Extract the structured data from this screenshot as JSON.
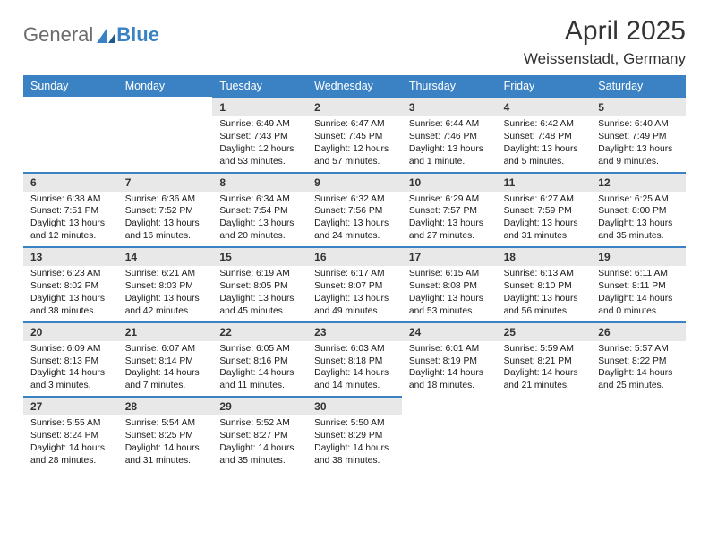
{
  "brand": {
    "name_part1": "General",
    "name_part2": "Blue",
    "text_color": "#6b6b6b",
    "accent_color": "#3b82c4"
  },
  "header": {
    "title": "April 2025",
    "location": "Weissenstadt, Germany",
    "title_fontsize": 30,
    "title_color": "#333333"
  },
  "style": {
    "header_bg": "#3b82c4",
    "header_text": "#ffffff",
    "daynum_bg": "#e8e8e8",
    "cell_border_color": "#3b82c4",
    "body_bg": "#ffffff",
    "text_color": "#1a1a1a",
    "detail_fontsize": 10.3,
    "daynum_fontsize": 12,
    "columns": 7
  },
  "day_names": [
    "Sunday",
    "Monday",
    "Tuesday",
    "Wednesday",
    "Thursday",
    "Friday",
    "Saturday"
  ],
  "weeks": [
    {
      "cells": [
        {
          "empty": true
        },
        {
          "empty": true
        },
        {
          "day": "1",
          "sunrise": "Sunrise: 6:49 AM",
          "sunset": "Sunset: 7:43 PM",
          "daylight": "Daylight: 12 hours and 53 minutes."
        },
        {
          "day": "2",
          "sunrise": "Sunrise: 6:47 AM",
          "sunset": "Sunset: 7:45 PM",
          "daylight": "Daylight: 12 hours and 57 minutes."
        },
        {
          "day": "3",
          "sunrise": "Sunrise: 6:44 AM",
          "sunset": "Sunset: 7:46 PM",
          "daylight": "Daylight: 13 hours and 1 minute."
        },
        {
          "day": "4",
          "sunrise": "Sunrise: 6:42 AM",
          "sunset": "Sunset: 7:48 PM",
          "daylight": "Daylight: 13 hours and 5 minutes."
        },
        {
          "day": "5",
          "sunrise": "Sunrise: 6:40 AM",
          "sunset": "Sunset: 7:49 PM",
          "daylight": "Daylight: 13 hours and 9 minutes."
        }
      ]
    },
    {
      "cells": [
        {
          "day": "6",
          "sunrise": "Sunrise: 6:38 AM",
          "sunset": "Sunset: 7:51 PM",
          "daylight": "Daylight: 13 hours and 12 minutes."
        },
        {
          "day": "7",
          "sunrise": "Sunrise: 6:36 AM",
          "sunset": "Sunset: 7:52 PM",
          "daylight": "Daylight: 13 hours and 16 minutes."
        },
        {
          "day": "8",
          "sunrise": "Sunrise: 6:34 AM",
          "sunset": "Sunset: 7:54 PM",
          "daylight": "Daylight: 13 hours and 20 minutes."
        },
        {
          "day": "9",
          "sunrise": "Sunrise: 6:32 AM",
          "sunset": "Sunset: 7:56 PM",
          "daylight": "Daylight: 13 hours and 24 minutes."
        },
        {
          "day": "10",
          "sunrise": "Sunrise: 6:29 AM",
          "sunset": "Sunset: 7:57 PM",
          "daylight": "Daylight: 13 hours and 27 minutes."
        },
        {
          "day": "11",
          "sunrise": "Sunrise: 6:27 AM",
          "sunset": "Sunset: 7:59 PM",
          "daylight": "Daylight: 13 hours and 31 minutes."
        },
        {
          "day": "12",
          "sunrise": "Sunrise: 6:25 AM",
          "sunset": "Sunset: 8:00 PM",
          "daylight": "Daylight: 13 hours and 35 minutes."
        }
      ]
    },
    {
      "cells": [
        {
          "day": "13",
          "sunrise": "Sunrise: 6:23 AM",
          "sunset": "Sunset: 8:02 PM",
          "daylight": "Daylight: 13 hours and 38 minutes."
        },
        {
          "day": "14",
          "sunrise": "Sunrise: 6:21 AM",
          "sunset": "Sunset: 8:03 PM",
          "daylight": "Daylight: 13 hours and 42 minutes."
        },
        {
          "day": "15",
          "sunrise": "Sunrise: 6:19 AM",
          "sunset": "Sunset: 8:05 PM",
          "daylight": "Daylight: 13 hours and 45 minutes."
        },
        {
          "day": "16",
          "sunrise": "Sunrise: 6:17 AM",
          "sunset": "Sunset: 8:07 PM",
          "daylight": "Daylight: 13 hours and 49 minutes."
        },
        {
          "day": "17",
          "sunrise": "Sunrise: 6:15 AM",
          "sunset": "Sunset: 8:08 PM",
          "daylight": "Daylight: 13 hours and 53 minutes."
        },
        {
          "day": "18",
          "sunrise": "Sunrise: 6:13 AM",
          "sunset": "Sunset: 8:10 PM",
          "daylight": "Daylight: 13 hours and 56 minutes."
        },
        {
          "day": "19",
          "sunrise": "Sunrise: 6:11 AM",
          "sunset": "Sunset: 8:11 PM",
          "daylight": "Daylight: 14 hours and 0 minutes."
        }
      ]
    },
    {
      "cells": [
        {
          "day": "20",
          "sunrise": "Sunrise: 6:09 AM",
          "sunset": "Sunset: 8:13 PM",
          "daylight": "Daylight: 14 hours and 3 minutes."
        },
        {
          "day": "21",
          "sunrise": "Sunrise: 6:07 AM",
          "sunset": "Sunset: 8:14 PM",
          "daylight": "Daylight: 14 hours and 7 minutes."
        },
        {
          "day": "22",
          "sunrise": "Sunrise: 6:05 AM",
          "sunset": "Sunset: 8:16 PM",
          "daylight": "Daylight: 14 hours and 11 minutes."
        },
        {
          "day": "23",
          "sunrise": "Sunrise: 6:03 AM",
          "sunset": "Sunset: 8:18 PM",
          "daylight": "Daylight: 14 hours and 14 minutes."
        },
        {
          "day": "24",
          "sunrise": "Sunrise: 6:01 AM",
          "sunset": "Sunset: 8:19 PM",
          "daylight": "Daylight: 14 hours and 18 minutes."
        },
        {
          "day": "25",
          "sunrise": "Sunrise: 5:59 AM",
          "sunset": "Sunset: 8:21 PM",
          "daylight": "Daylight: 14 hours and 21 minutes."
        },
        {
          "day": "26",
          "sunrise": "Sunrise: 5:57 AM",
          "sunset": "Sunset: 8:22 PM",
          "daylight": "Daylight: 14 hours and 25 minutes."
        }
      ]
    },
    {
      "cells": [
        {
          "day": "27",
          "sunrise": "Sunrise: 5:55 AM",
          "sunset": "Sunset: 8:24 PM",
          "daylight": "Daylight: 14 hours and 28 minutes."
        },
        {
          "day": "28",
          "sunrise": "Sunrise: 5:54 AM",
          "sunset": "Sunset: 8:25 PM",
          "daylight": "Daylight: 14 hours and 31 minutes."
        },
        {
          "day": "29",
          "sunrise": "Sunrise: 5:52 AM",
          "sunset": "Sunset: 8:27 PM",
          "daylight": "Daylight: 14 hours and 35 minutes."
        },
        {
          "day": "30",
          "sunrise": "Sunrise: 5:50 AM",
          "sunset": "Sunset: 8:29 PM",
          "daylight": "Daylight: 14 hours and 38 minutes."
        },
        {
          "empty": true
        },
        {
          "empty": true
        },
        {
          "empty": true
        }
      ]
    }
  ]
}
